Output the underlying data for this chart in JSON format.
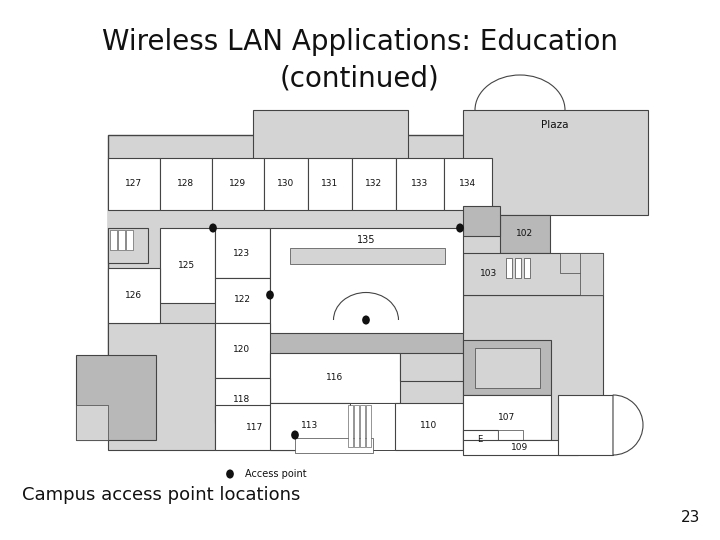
{
  "title_line1": "Wireless LAN Applications: Education",
  "title_line2": "(continued)",
  "title_fontsize": 20,
  "caption": "Campus access point locations",
  "caption_fontsize": 13,
  "page_number": "23",
  "page_fontsize": 11,
  "bg": "#ffffff",
  "tc": "#111111",
  "W": "#ffffff",
  "L": "#d4d4d4",
  "M": "#b8b8b8",
  "D": "#909090",
  "EC": "#444444",
  "AP": "#111111"
}
